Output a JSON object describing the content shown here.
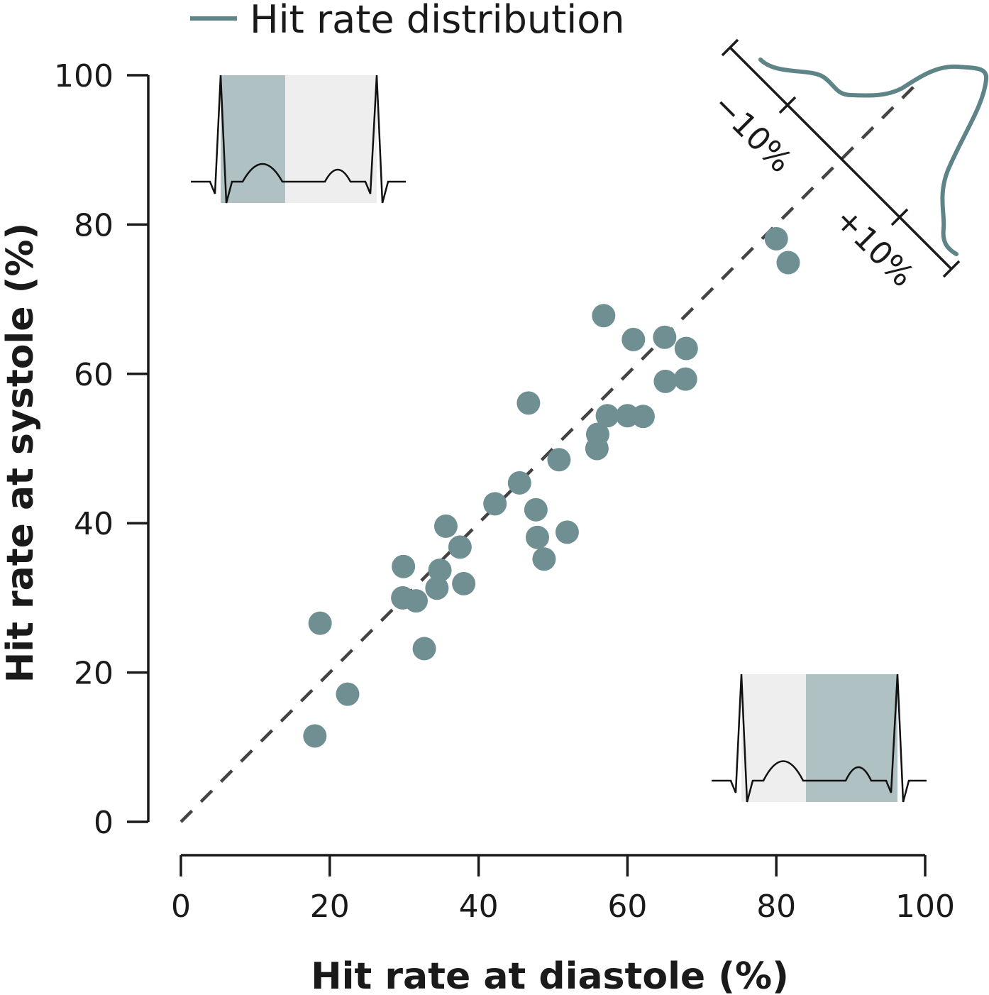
{
  "chart_data": {
    "type": "scatter",
    "xlabel": "Hit rate at diastole (%)",
    "ylabel": "Hit rate at systole (%)",
    "xlim": [
      0,
      100
    ],
    "ylim": [
      0,
      100
    ],
    "xticks": [
      "0",
      "20",
      "40",
      "60",
      "80",
      "100"
    ],
    "yticks": [
      "0",
      "20",
      "40",
      "60",
      "80",
      "100"
    ],
    "grid": false,
    "legend": {
      "position": "top-left",
      "entries": [
        "Hit rate distribution"
      ]
    },
    "series": [
      {
        "points": [
          [
            18.0,
            11.5
          ],
          [
            18.7,
            26.6
          ],
          [
            22.4,
            17.1
          ],
          [
            29.8,
            30.0
          ],
          [
            29.9,
            34.2
          ],
          [
            31.6,
            29.6
          ],
          [
            32.7,
            23.2
          ],
          [
            34.4,
            31.3
          ],
          [
            34.8,
            33.7
          ],
          [
            35.6,
            39.6
          ],
          [
            37.5,
            36.8
          ],
          [
            38.0,
            31.9
          ],
          [
            42.2,
            42.6
          ],
          [
            45.5,
            45.4
          ],
          [
            46.7,
            56.1
          ],
          [
            47.7,
            41.8
          ],
          [
            47.9,
            38.1
          ],
          [
            48.8,
            35.2
          ],
          [
            50.8,
            48.5
          ],
          [
            51.9,
            38.8
          ],
          [
            55.9,
            50.0
          ],
          [
            56.0,
            51.9
          ],
          [
            56.8,
            67.8
          ],
          [
            57.3,
            54.4
          ],
          [
            60.0,
            54.4
          ],
          [
            60.8,
            64.6
          ],
          [
            62.1,
            54.3
          ],
          [
            65.0,
            64.9
          ],
          [
            65.1,
            59.0
          ],
          [
            67.8,
            59.3
          ],
          [
            67.9,
            63.4
          ],
          [
            80.0,
            78.1
          ],
          [
            81.6,
            74.9
          ]
        ]
      }
    ],
    "reference_line": "identity (y = x), dashed",
    "distribution_inset": {
      "axis_labels": [
        "−10%",
        "+10%"
      ]
    },
    "colors": {
      "points": "#6f8f92",
      "distribution_line": "#5f8488",
      "highlight_phase": "#afc1c3",
      "other_phase": "#eeeeee",
      "axis": "#1a1a1a",
      "reference_line": "#444444"
    }
  }
}
